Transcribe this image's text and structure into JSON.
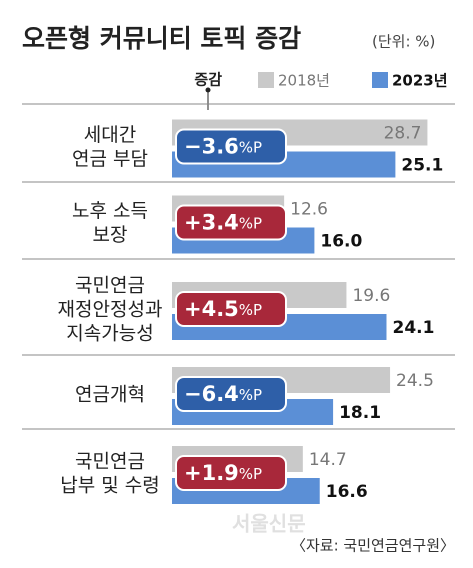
{
  "chart_data": {
    "type": "bar",
    "orientation": "horizontal",
    "title": "오픈형 커뮤니티 토픽 증감",
    "subtitle": "(단위: %)",
    "categories": [
      [
        "세대간",
        "연금 부담"
      ],
      [
        "노후 소득",
        "보장"
      ],
      [
        "국민연금",
        "재정안정성과",
        "지속가능성"
      ],
      [
        "연금개혁"
      ],
      [
        "국민연금",
        "납부 및 수령"
      ]
    ],
    "series": [
      {
        "name": "2018년",
        "color": "#c9c9c9",
        "values": [
          28.7,
          12.6,
          19.6,
          24.5,
          14.7
        ]
      },
      {
        "name": "2023년",
        "color": "#5b8fd6",
        "values": [
          25.1,
          16.0,
          24.1,
          18.1,
          16.6
        ],
        "value_labels": [
          "25.1",
          "16.0",
          "24.1",
          "18.1",
          "16.6"
        ]
      }
    ],
    "change": {
      "name": "증감",
      "unit": "%P",
      "values": [
        -3.6,
        3.4,
        4.5,
        -6.4,
        1.9
      ],
      "value_labels": [
        "−3.6",
        "+3.4",
        "+4.5",
        "−6.4",
        "+1.9"
      ],
      "colors": {
        "negative": "#2e5fa8",
        "positive": "#a8283a"
      }
    },
    "source": "〈자료: 국민연금연구원〉",
    "watermark": "서울신문"
  }
}
